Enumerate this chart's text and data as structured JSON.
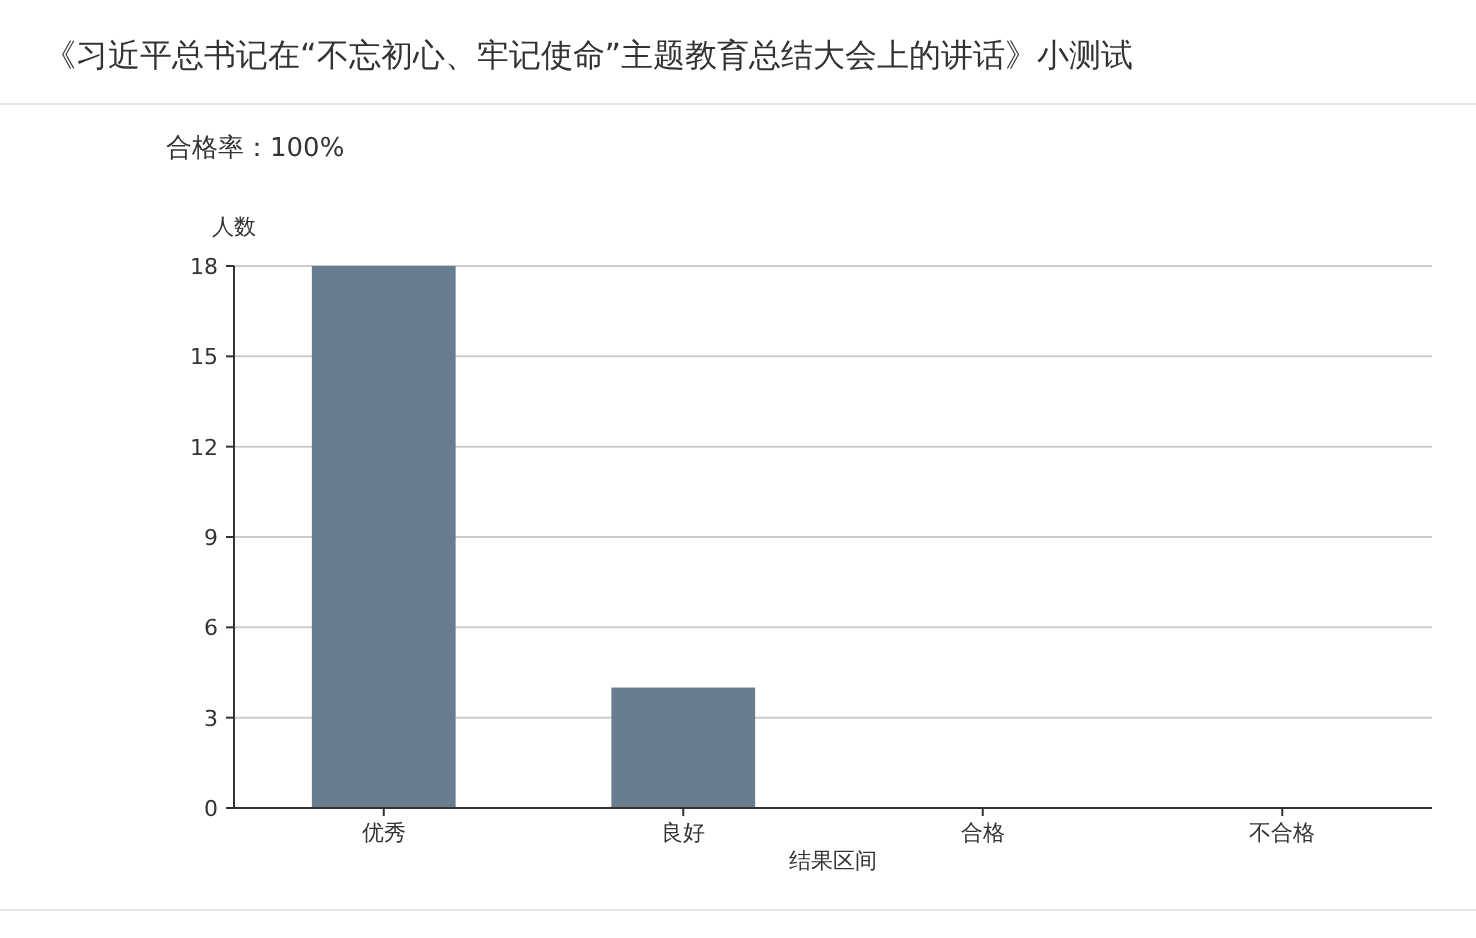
{
  "chart_data": {
    "type": "bar",
    "title": "《习近平总书记在“不忘初心、牢记使命”主题教育总结大会上的讲话》小测试",
    "subtitle": "合格率：100%",
    "xlabel": "结果区间",
    "ylabel": "人数",
    "categories": [
      "优秀",
      "良好",
      "合格",
      "不合格"
    ],
    "values": [
      18,
      4,
      0,
      0
    ],
    "color": "#697d91",
    "ylim": [
      0,
      18
    ],
    "yticks": [
      0,
      3,
      6,
      9,
      12,
      15,
      18
    ],
    "grid": "y"
  }
}
